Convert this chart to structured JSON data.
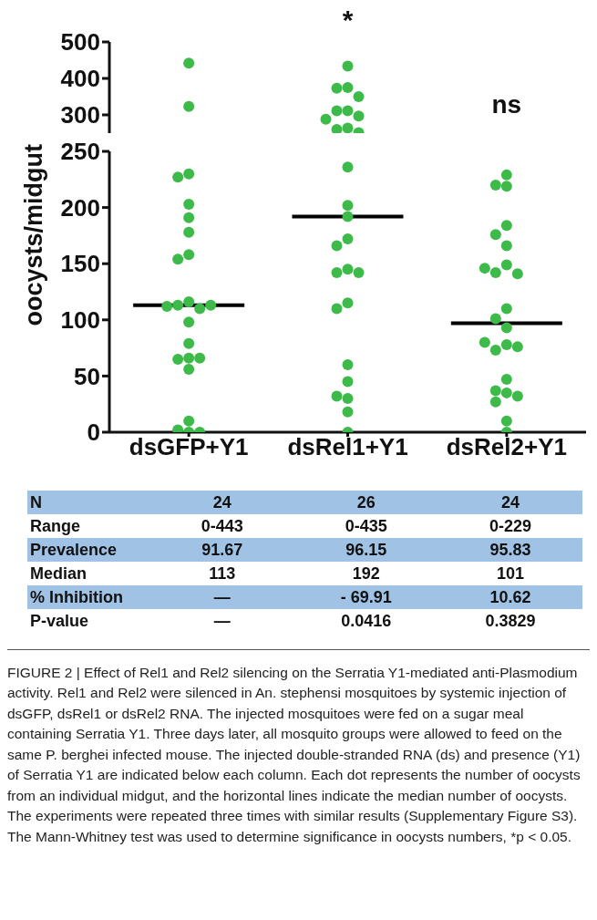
{
  "chart_data": [
    {
      "type": "scatter",
      "categories": [
        "dsGFP+Y1",
        "dsRel1+Y1",
        "dsRel2+Y1"
      ],
      "ylim": [
        250,
        500
      ],
      "yticks": [
        300,
        400,
        500
      ],
      "tick_labels": "y",
      "marker": "circle",
      "series": [
        {
          "color": "#3dba4a",
          "x": [
            "dsGFP+Y1",
            "dsGFP+Y1",
            "dsRel1+Y1",
            "dsRel1+Y1",
            "dsRel1+Y1",
            "dsRel1+Y1",
            "dsRel1+Y1",
            "dsRel1+Y1",
            "dsRel1+Y1",
            "dsRel1+Y1",
            "dsRel1+Y1",
            "dsRel1+Y1",
            "dsRel1+Y1"
          ],
          "values": [
            442,
            323,
            434,
            375,
            373,
            350,
            311,
            311,
            297,
            288,
            264,
            260,
            251
          ]
        }
      ],
      "annotations": [
        "*",
        "ns"
      ]
    },
    {
      "type": "scatter",
      "categories": [
        "dsGFP+Y1",
        "dsRel1+Y1",
        "dsRel2+Y1"
      ],
      "ylim": [
        0,
        250
      ],
      "yticks": [
        0,
        50,
        100,
        150,
        200,
        250
      ],
      "ylabel": "oocysts/midgut",
      "marker": "circle",
      "series": [
        {
          "color": "#3dba4a",
          "x": [
            "dsGFP+Y1",
            "dsGFP+Y1",
            "dsGFP+Y1",
            "dsGFP+Y1",
            "dsGFP+Y1",
            "dsGFP+Y1",
            "dsGFP+Y1",
            "dsGFP+Y1",
            "dsGFP+Y1",
            "dsGFP+Y1",
            "dsGFP+Y1",
            "dsGFP+Y1",
            "dsGFP+Y1",
            "dsGFP+Y1",
            "dsGFP+Y1",
            "dsGFP+Y1",
            "dsGFP+Y1",
            "dsGFP+Y1",
            "dsGFP+Y1",
            "dsGFP+Y1",
            "dsGFP+Y1",
            "dsGFP+Y1",
            "dsRel1+Y1",
            "dsRel1+Y1",
            "dsRel1+Y1",
            "dsRel1+Y1",
            "dsRel1+Y1",
            "dsRel1+Y1",
            "dsRel1+Y1",
            "dsRel1+Y1",
            "dsRel1+Y1",
            "dsRel1+Y1",
            "dsRel1+Y1",
            "dsRel1+Y1",
            "dsRel1+Y1",
            "dsRel1+Y1",
            "dsRel1+Y1",
            "dsRel1+Y1",
            "dsRel2+Y1",
            "dsRel2+Y1",
            "dsRel2+Y1",
            "dsRel2+Y1",
            "dsRel2+Y1",
            "dsRel2+Y1",
            "dsRel2+Y1",
            "dsRel2+Y1",
            "dsRel2+Y1",
            "dsRel2+Y1",
            "dsRel2+Y1",
            "dsRel2+Y1",
            "dsRel2+Y1",
            "dsRel2+Y1",
            "dsRel2+Y1",
            "dsRel2+Y1",
            "dsRel2+Y1",
            "dsRel2+Y1",
            "dsRel2+Y1",
            "dsRel2+Y1",
            "dsRel2+Y1",
            "dsRel2+Y1",
            "dsRel2+Y1",
            "dsRel2+Y1"
          ],
          "values": [
            230,
            227,
            203,
            191,
            178,
            158,
            154,
            116,
            113,
            110,
            112,
            113,
            98,
            79,
            66,
            65,
            66,
            56,
            10,
            2,
            0,
            0,
            236,
            202,
            192,
            172,
            166,
            145,
            142,
            142,
            115,
            110,
            60,
            45,
            30,
            32,
            18,
            0,
            229,
            219,
            220,
            184,
            176,
            166,
            149,
            142,
            141,
            146,
            110,
            101,
            93,
            78,
            73,
            76,
            80,
            47,
            35,
            37,
            32,
            27,
            10,
            0
          ]
        }
      ],
      "ref_lines": [
        {
          "axis": "y",
          "value": 113,
          "color": "#000000"
        },
        {
          "axis": "y",
          "value": 192,
          "color": "#000000"
        },
        {
          "axis": "y",
          "value": 97,
          "color": "#000000"
        }
      ]
    },
    {
      "type": "other",
      "y_categories": [
        "N",
        "Range",
        "Prevalence",
        "Median",
        "% Inhibition",
        "P-value"
      ],
      "cell_labels": [
        [
          "24",
          "26",
          "24"
        ],
        [
          "0-443",
          "0-435",
          "0-229"
        ],
        [
          "91.67",
          "96.15",
          "95.83"
        ],
        [
          "113",
          "192",
          "101"
        ],
        [
          "—",
          "- 69.91",
          "10.62"
        ],
        [
          "—",
          "0.0416",
          "0.3829"
        ]
      ],
      "annotations": [
        "FIGURE 2 | Effect of Rel1 and Rel2 silencing on the Serratia Y1-mediated anti-Plasmodium activity. Rel1 and Rel2 were silenced in An. stephensi mosquitoes by systemic injection of dsGFP, dsRel1 or dsRel2 RNA. The injected mosquitoes were fed on a sugar meal containing Serratia Y1. Three days later, all mosquito groups were allowed to feed on the same P. berghei infected mouse. The injected double-stranded RNA (ds) and presence (Y1) of Serratia Y1 are indicated below each column. Each dot represents the number of oocysts from an individual midgut, and the horizontal lines indicate the median number of oocysts. The experiments were repeated three times with similar results (Supplementary Figure S3). The Mann-Whitney test was used to determine significance in oocysts numbers, *p < 0.05."
      ]
    }
  ]
}
